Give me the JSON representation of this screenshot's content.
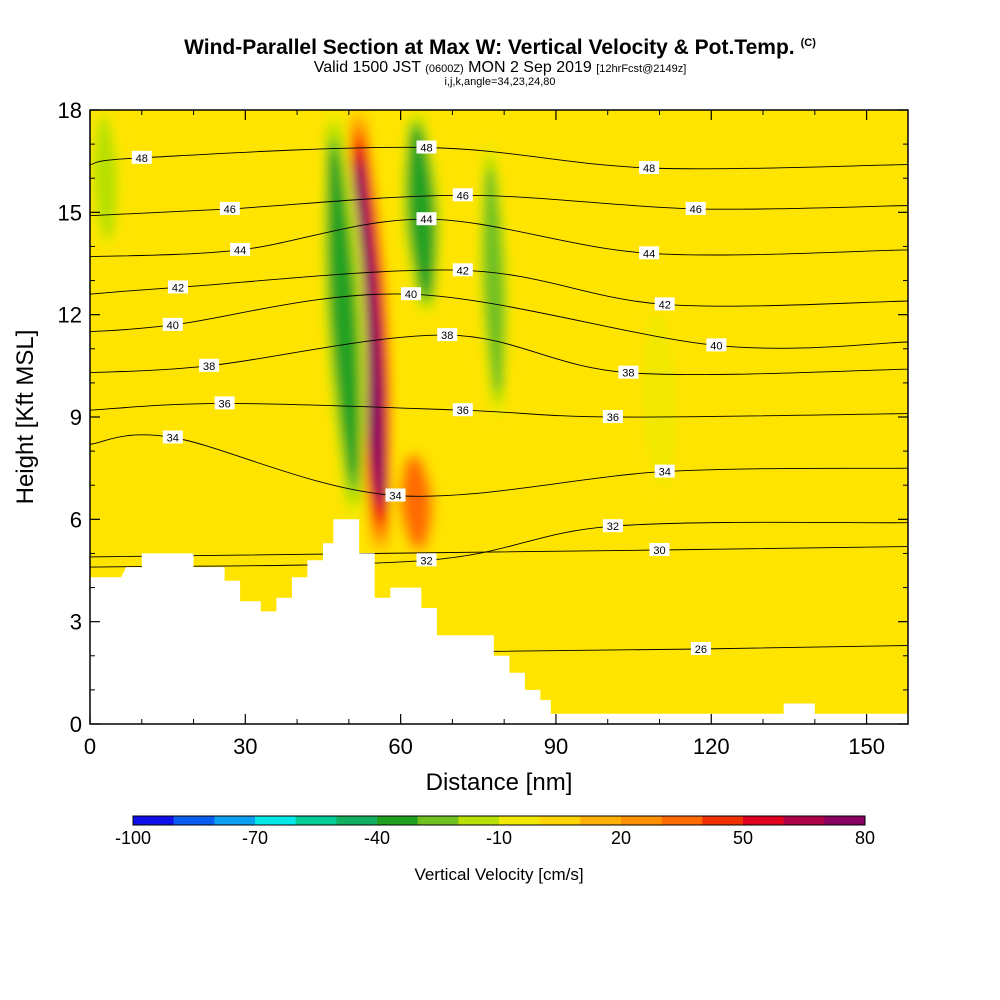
{
  "title": {
    "main": "Wind-Parallel Section at Max W: Vertical Velocity & Pot.Temp.",
    "main_suffix": "(C)",
    "valid": "Valid 1500 JST",
    "utc": "(0600Z)",
    "date": "MON 2 Sep 2019",
    "forecast": "[12hrFcst@2149z]",
    "indices": "i,j,k,angle=34,23,24,80"
  },
  "chart_data": {
    "type": "heatmap",
    "xlabel": "Distance [nm]",
    "ylabel": "Height [Kft MSL]",
    "xlim": [
      0,
      158
    ],
    "ylim": [
      0,
      18
    ],
    "x_ticks": [
      0,
      30,
      60,
      90,
      120,
      150
    ],
    "y_ticks": [
      0,
      3,
      6,
      9,
      12,
      15,
      18
    ],
    "colorbar": {
      "title": "Vertical Velocity [cm/s]",
      "tick_labels": [
        "-100",
        "-70",
        "-40",
        "-10",
        "20",
        "50",
        "80"
      ],
      "levels": [
        -100,
        -90,
        -80,
        -70,
        -60,
        -50,
        -40,
        -30,
        -20,
        -10,
        0,
        10,
        20,
        30,
        40,
        50,
        60,
        70,
        80
      ],
      "colors": [
        "#1010e8",
        "#0a5cf0",
        "#0aa0f0",
        "#00e8e8",
        "#00cc99",
        "#10b060",
        "#20a020",
        "#70c020",
        "#b8e000",
        "#f0e800",
        "#ffd400",
        "#ffb000",
        "#ff9000",
        "#ff6a00",
        "#f03000",
        "#e00020",
        "#b00048",
        "#880060"
      ]
    },
    "vertical_velocity_features": [
      {
        "type": "updraft",
        "x": 54,
        "y_bottom": 5,
        "y_top": 18,
        "peak": 80
      },
      {
        "type": "downdraft",
        "x": 49,
        "y_bottom": 6,
        "y_top": 18,
        "min": -40
      },
      {
        "type": "downdraft",
        "x": 64,
        "y_bottom": 12,
        "y_top": 18,
        "min": -40
      },
      {
        "type": "downdraft",
        "x": 78,
        "y_bottom": 9,
        "y_top": 17,
        "min": -30
      },
      {
        "type": "weak downdraft",
        "x": 110,
        "y_bottom": 7,
        "y_top": 12,
        "min": -10
      },
      {
        "type": "weak downdraft",
        "x": 3,
        "y_bottom": 14,
        "y_top": 18,
        "min": -20
      },
      {
        "type": "updraft",
        "x": 63,
        "y_bottom": 5,
        "y_top": 8,
        "peak": 40
      }
    ],
    "potential_temperature_labels": [
      {
        "value": "48",
        "x": 10,
        "y": 16.6
      },
      {
        "value": "46",
        "x": 27,
        "y": 15.1
      },
      {
        "value": "44",
        "x": 29,
        "y": 13.9
      },
      {
        "value": "42",
        "x": 17,
        "y": 12.8
      },
      {
        "value": "40",
        "x": 16,
        "y": 11.7
      },
      {
        "value": "38",
        "x": 23,
        "y": 10.5
      },
      {
        "value": "36",
        "x": 26,
        "y": 9.4
      },
      {
        "value": "34",
        "x": 16,
        "y": 8.4
      },
      {
        "value": "48",
        "x": 65,
        "y": 16.9
      },
      {
        "value": "46",
        "x": 72,
        "y": 15.5
      },
      {
        "value": "44",
        "x": 65,
        "y": 14.8
      },
      {
        "value": "42",
        "x": 72,
        "y": 13.3
      },
      {
        "value": "40",
        "x": 62,
        "y": 12.6
      },
      {
        "value": "38",
        "x": 69,
        "y": 11.4
      },
      {
        "value": "36",
        "x": 72,
        "y": 9.2
      },
      {
        "value": "34",
        "x": 59,
        "y": 6.7
      },
      {
        "value": "32",
        "x": 65,
        "y": 4.8
      },
      {
        "value": "48",
        "x": 108,
        "y": 16.3
      },
      {
        "value": "46",
        "x": 117,
        "y": 15.1
      },
      {
        "value": "44",
        "x": 108,
        "y": 13.8
      },
      {
        "value": "42",
        "x": 111,
        "y": 12.3
      },
      {
        "value": "40",
        "x": 121,
        "y": 11.1
      },
      {
        "value": "38",
        "x": 104,
        "y": 10.3
      },
      {
        "value": "36",
        "x": 101,
        "y": 9.0
      },
      {
        "value": "34",
        "x": 111,
        "y": 7.4
      },
      {
        "value": "32",
        "x": 101,
        "y": 5.8
      },
      {
        "value": "30",
        "x": 110,
        "y": 5.1
      },
      {
        "value": "26",
        "x": 118,
        "y": 2.2
      }
    ],
    "terrain": [
      [
        0,
        4.3
      ],
      [
        6,
        4.3
      ],
      [
        7,
        4.6
      ],
      [
        10,
        4.6
      ],
      [
        10,
        5.0
      ],
      [
        20,
        5.0
      ],
      [
        20,
        4.6
      ],
      [
        26,
        4.6
      ],
      [
        26,
        4.2
      ],
      [
        29,
        4.2
      ],
      [
        29,
        3.6
      ],
      [
        33,
        3.6
      ],
      [
        33,
        3.3
      ],
      [
        36,
        3.3
      ],
      [
        36,
        3.7
      ],
      [
        39,
        3.7
      ],
      [
        39,
        4.3
      ],
      [
        42,
        4.3
      ],
      [
        42,
        4.8
      ],
      [
        45,
        4.8
      ],
      [
        45,
        5.3
      ],
      [
        47,
        5.3
      ],
      [
        47,
        6.0
      ],
      [
        52,
        6.0
      ],
      [
        52,
        5.0
      ],
      [
        55,
        5.0
      ],
      [
        55,
        3.7
      ],
      [
        58,
        3.7
      ],
      [
        58,
        4.0
      ],
      [
        64,
        4.0
      ],
      [
        64,
        3.4
      ],
      [
        67,
        3.4
      ],
      [
        67,
        2.6
      ],
      [
        78,
        2.6
      ],
      [
        78,
        2.0
      ],
      [
        81,
        2.0
      ],
      [
        81,
        1.5
      ],
      [
        84,
        1.5
      ],
      [
        84,
        1.0
      ],
      [
        87,
        1.0
      ],
      [
        87,
        0.7
      ],
      [
        89,
        0.7
      ],
      [
        89,
        0.3
      ],
      [
        134,
        0.3
      ],
      [
        134,
        0.6
      ],
      [
        140,
        0.6
      ],
      [
        140,
        0.3
      ],
      [
        158,
        0.3
      ]
    ]
  }
}
